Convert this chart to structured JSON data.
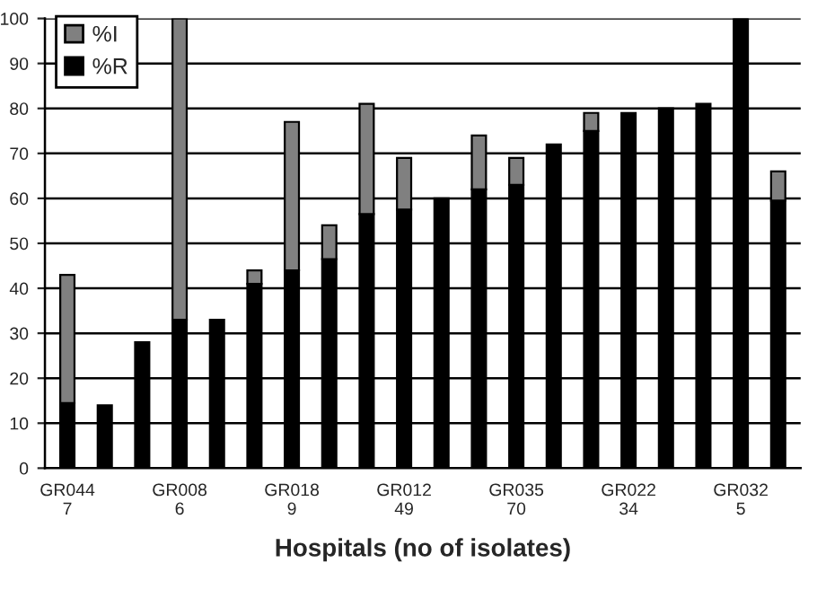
{
  "chart_data": {
    "type": "bar",
    "stacked": true,
    "xlabel": "Hospitals (no of isolates)",
    "categories": [
      "GR044\n7",
      null,
      null,
      "GR008\n6",
      null,
      null,
      "GR018\n9",
      null,
      null,
      "GR012\n49",
      null,
      null,
      "GR035\n70",
      null,
      null,
      "GR022\n34",
      null,
      null,
      "GR032\n5",
      null
    ],
    "series": [
      {
        "name": "%R",
        "color": "#000000",
        "values": [
          14.5,
          14,
          28,
          33,
          33,
          41,
          44,
          46.5,
          56.5,
          57.5,
          60,
          62,
          63,
          72,
          75,
          79,
          80,
          81,
          100,
          59.5
        ]
      },
      {
        "name": "%I",
        "color": "#808080",
        "values": [
          28.5,
          null,
          null,
          67,
          null,
          3,
          33,
          7.5,
          24.5,
          11.5,
          null,
          12,
          6,
          null,
          4,
          null,
          null,
          null,
          null,
          6.5
        ]
      }
    ],
    "ylim": [
      0,
      100
    ],
    "yticks": [
      0,
      10,
      20,
      30,
      40,
      50,
      60,
      70,
      80,
      90,
      100
    ],
    "grid": "y",
    "legend": "top left"
  }
}
